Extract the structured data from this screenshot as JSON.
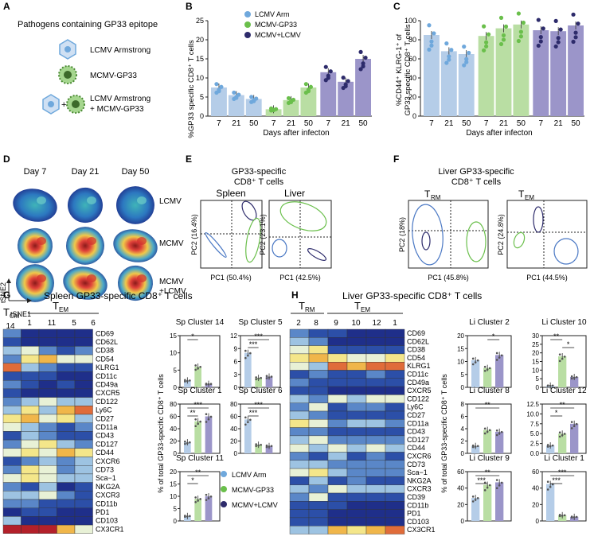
{
  "colors": {
    "arm": "#6fa8dc",
    "mcmv": "#6abf4b",
    "both": "#2d2b6b",
    "arm_bar": "#b5cde8",
    "mcmv_bar": "#b9dea3",
    "both_bar": "#9b95c9"
  },
  "panel_labels": [
    "A",
    "B",
    "C",
    "D",
    "E",
    "F",
    "G",
    "H"
  ],
  "panelA": {
    "title": "Pathogens containing GP33 epitope",
    "items": [
      "LCMV Armstrong",
      "MCMV-GP33",
      "LCMV Armstrong",
      "+ MCMV-GP33"
    ]
  },
  "legend": {
    "arm": "LCMV Arm",
    "mcmv": "MCMV-GP33",
    "both": "MCMV+LCMV"
  },
  "legendG": {
    "arm": "LCMV Arm",
    "mcmv": "MCMV-GP33",
    "both": "MCMV+LCMV"
  },
  "panelB": {
    "ylabel": "%GP33 specific CD8⁺ T cells",
    "xlabel": "Days after infecton",
    "days": [
      "7",
      "21",
      "50"
    ],
    "yticks": [
      "0",
      "5",
      "10",
      "15",
      "20",
      "25"
    ]
  },
  "panelC": {
    "ylabel1": "%CD44⁺ KLRG-1⁺ of",
    "ylabel2": "GP33 specific CD8⁺ T cells",
    "xlabel": "Days after infecton",
    "yticks": [
      "0",
      "20",
      "40",
      "60",
      "80",
      "100"
    ]
  },
  "panelD": {
    "cols": [
      "Day 7",
      "Day 21",
      "Day 50"
    ],
    "rows": [
      "LCMV",
      "MCMV",
      "MCMV",
      "+LCMV"
    ],
    "y": "tSNE2",
    "x": "tSNE1"
  },
  "panelE": {
    "title1": "GP33-specific",
    "title2": "CD8⁺ T cells",
    "sub1": "Spleen",
    "sub2": "Liver",
    "pc1a": "PC1 (50.4%)",
    "pc2a": "PC2 (16.4%)",
    "pc1b": "PC1 (42.5%)",
    "pc2b": "PC2 (23.1%)"
  },
  "panelF": {
    "title1": "Liver GP33-specific",
    "title2": "CD8⁺ T cells",
    "sub1": "T",
    "sub1s": "RM",
    "sub2": "T",
    "sub2s": "EM",
    "pc1a": "PC1 (45.8%)",
    "pc2a": "PC2 (18%)",
    "pc1b": "PC1 (44.5%)",
    "pc2b": "PC2 (24.8%)"
  },
  "panelG": {
    "title": "Spleen GP33-specific CD8⁺ T cells",
    "tcm": "T",
    "tcms": "CM",
    "tem": "T",
    "tems": "EM",
    "clusters": [
      "14",
      "1",
      "11",
      "5",
      "6"
    ],
    "ylabel": "% of total GP33-specific CD8⁺ T cells",
    "plots": [
      {
        "title": "Sp Cluster 14",
        "ticks": [
          "0",
          "5",
          "10",
          "15"
        ]
      },
      {
        "title": "Sp Cluster 5",
        "ticks": [
          "0",
          "3",
          "6",
          "9",
          "12"
        ]
      },
      {
        "title": "Sp Cluster 1",
        "ticks": [
          "0",
          "20",
          "40",
          "60",
          "80"
        ]
      },
      {
        "title": "Sp Cluster 6",
        "ticks": [
          "0",
          "20",
          "40",
          "60",
          "80"
        ]
      },
      {
        "title": "Sp Cluster 11",
        "ticks": [
          "0",
          "5",
          "10",
          "15",
          "20"
        ]
      }
    ]
  },
  "panelH": {
    "title": "Liver  GP33-specific CD8⁺ T cells",
    "trm": "T",
    "trms": "RM",
    "tem": "T",
    "tems": "EM",
    "clusters": [
      "2",
      "8",
      "9",
      "10",
      "12",
      "1"
    ],
    "ylabel": "% of total GP33-specific CD8⁺ T cells",
    "plots": [
      {
        "title": "Li Cluster 2",
        "ticks": [
          "0",
          "5",
          "10",
          "15",
          "20"
        ]
      },
      {
        "title": "Li Cluster 10",
        "ticks": [
          "0",
          "5",
          "10",
          "15",
          "20",
          "25",
          "30"
        ]
      },
      {
        "title": "Li Cluster 8",
        "ticks": [
          "0",
          "2",
          "4",
          "6",
          "8"
        ]
      },
      {
        "title": "Li Cluster 12",
        "ticks": [
          "0.0",
          "2.5",
          "5.0",
          "7.5",
          "10.0",
          "12.5"
        ]
      },
      {
        "title": "Li Cluster 9",
        "ticks": [
          "0",
          "20",
          "40",
          "60"
        ]
      },
      {
        "title": "Li Cluster 1",
        "ticks": [
          "0",
          "20",
          "40",
          "60"
        ]
      }
    ]
  },
  "markers": [
    "CD69",
    "CD62L",
    "CD38",
    "CD54",
    "KLRG1",
    "CD11c",
    "CD49a",
    "CXCR5",
    "CD122",
    "Ly6C",
    "CD27",
    "CD11a",
    "CD43",
    "CD127",
    "CD44",
    "CXCR6",
    "CD73",
    "Sca−1",
    "NKG2A",
    "CXCR3",
    "CD11b",
    "PD1",
    "CD103",
    "CX3CR1"
  ],
  "markersH": [
    "CD69",
    "CD62L",
    "CD38",
    "CD54",
    "KLRG1",
    "CD11c",
    "CD49a",
    "CXCR5",
    "CD122",
    "Ly6C",
    "CD27",
    "CD11a",
    "CD43",
    "CD127",
    "CD44",
    "CXCR6",
    "CD73",
    "Sca−1",
    "NKG2A",
    "CXCR3",
    "CD39",
    "CD11b",
    "PD1",
    "CD103",
    "CX3CR1"
  ],
  "sig": {
    "s1": "*",
    "s3": "***",
    "s2": "**"
  },
  "chart_data": [
    {
      "type": "bar",
      "title": "%GP33 specific CD8+ T cells",
      "categories": [
        "7",
        "21",
        "50"
      ],
      "series": [
        {
          "name": "LCMV Arm",
          "values": [
            7.5,
            5.5,
            4.5
          ]
        },
        {
          "name": "MCMV-GP33",
          "values": [
            1.8,
            4.2,
            7.5
          ]
        },
        {
          "name": "MCMV+LCMV",
          "values": [
            11.5,
            9,
            15
          ]
        }
      ],
      "ylim": [
        0,
        25
      ],
      "xlabel": "Days after infecton"
    },
    {
      "type": "bar",
      "title": "%CD44+ KLRG-1+ of GP33 specific CD8+ T cells",
      "categories": [
        "7",
        "21",
        "50"
      ],
      "series": [
        {
          "name": "LCMV Arm",
          "values": [
            85,
            68,
            65
          ]
        },
        {
          "name": "MCMV-GP33",
          "values": [
            84,
            92,
            96
          ]
        },
        {
          "name": "MCMV+LCMV",
          "values": [
            90,
            89,
            95
          ]
        }
      ],
      "ylim": [
        0,
        100
      ],
      "xlabel": "Days after infecton"
    },
    {
      "type": "bar",
      "title": "Sp Cluster 14",
      "categories": [
        "LCMV Arm",
        "MCMV-GP33",
        "MCMV+LCMV"
      ],
      "values": [
        2,
        6,
        1
      ],
      "ylim": [
        0,
        15
      ]
    },
    {
      "type": "bar",
      "title": "Sp Cluster 5",
      "categories": [
        "LCMV Arm",
        "MCMV-GP33",
        "MCMV+LCMV"
      ],
      "values": [
        8,
        2.2,
        2.5
      ],
      "ylim": [
        0,
        12
      ]
    },
    {
      "type": "bar",
      "title": "Sp Cluster 1",
      "categories": [
        "LCMV Arm",
        "MCMV-GP33",
        "MCMV+LCMV"
      ],
      "values": [
        18,
        52,
        60
      ],
      "ylim": [
        0,
        80
      ]
    },
    {
      "type": "bar",
      "title": "Sp Cluster 6",
      "categories": [
        "LCMV Arm",
        "MCMV-GP33",
        "MCMV+LCMV"
      ],
      "values": [
        55,
        14,
        12
      ],
      "ylim": [
        0,
        80
      ]
    },
    {
      "type": "bar",
      "title": "Sp Cluster 11",
      "categories": [
        "LCMV Arm",
        "MCMV-GP33",
        "MCMV+LCMV"
      ],
      "values": [
        2,
        9,
        10
      ],
      "ylim": [
        0,
        20
      ]
    },
    {
      "type": "bar",
      "title": "Li Cluster 2",
      "categories": [
        "LCMV Arm",
        "MCMV-GP33",
        "MCMV+LCMV"
      ],
      "values": [
        10.5,
        7.5,
        12.5
      ],
      "ylim": [
        0,
        20
      ]
    },
    {
      "type": "bar",
      "title": "Li Cluster 10",
      "categories": [
        "LCMV Arm",
        "MCMV-GP33",
        "MCMV+LCMV"
      ],
      "values": [
        1,
        18,
        6
      ],
      "ylim": [
        0,
        30
      ]
    },
    {
      "type": "bar",
      "title": "Li Cluster 8",
      "categories": [
        "LCMV Arm",
        "MCMV-GP33",
        "MCMV+LCMV"
      ],
      "values": [
        1.2,
        3.8,
        3.5
      ],
      "ylim": [
        0,
        8
      ]
    },
    {
      "type": "bar",
      "title": "Li Cluster 12",
      "categories": [
        "LCMV Arm",
        "MCMV-GP33",
        "MCMV+LCMV"
      ],
      "values": [
        2,
        5,
        7.5
      ],
      "ylim": [
        0,
        12.5
      ]
    },
    {
      "type": "bar",
      "title": "Li Cluster 9",
      "categories": [
        "LCMV Arm",
        "MCMV-GP33",
        "MCMV+LCMV"
      ],
      "values": [
        28,
        44,
        47
      ],
      "ylim": [
        0,
        60
      ]
    },
    {
      "type": "bar",
      "title": "Li Cluster 1",
      "categories": [
        "LCMV Arm",
        "MCMV-GP33",
        "MCMV+LCMV"
      ],
      "values": [
        45,
        7,
        5
      ],
      "ylim": [
        0,
        60
      ]
    }
  ]
}
